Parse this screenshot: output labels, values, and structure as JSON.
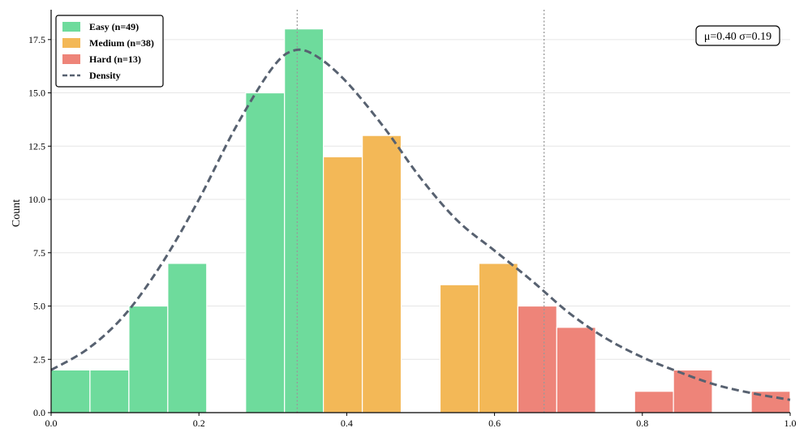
{
  "chart_data": {
    "type": "bar",
    "ylabel": "Count",
    "xlabel": "",
    "xlim": [
      0.0,
      1.0
    ],
    "ylim": [
      0,
      18.9
    ],
    "grid": "horizontal",
    "legend_position": "top-left",
    "x_ticks": [
      "0.0",
      "0.2",
      "0.4",
      "0.6",
      "0.8",
      "1.0"
    ],
    "y_ticks": [
      "0.0",
      "2.5",
      "5.0",
      "7.5",
      "10.0",
      "12.5",
      "15.0",
      "17.5"
    ],
    "bin_width": 0.0526,
    "series": [
      {
        "name": "Easy (n=49)",
        "color": "#6edb9c",
        "bins": [
          {
            "x0": 0.0,
            "count": 2
          },
          {
            "x0": 0.0526,
            "count": 2
          },
          {
            "x0": 0.1053,
            "count": 5
          },
          {
            "x0": 0.1579,
            "count": 7
          },
          {
            "x0": 0.2632,
            "count": 15
          },
          {
            "x0": 0.3158,
            "count": 18
          }
        ]
      },
      {
        "name": "Medium (n=38)",
        "color": "#f3b857",
        "bins": [
          {
            "x0": 0.3684,
            "count": 12
          },
          {
            "x0": 0.4211,
            "count": 13
          },
          {
            "x0": 0.5263,
            "count": 6
          },
          {
            "x0": 0.5789,
            "count": 7
          }
        ]
      },
      {
        "name": "Hard (n=13)",
        "color": "#ee8479",
        "bins": [
          {
            "x0": 0.6316,
            "count": 5
          },
          {
            "x0": 0.6842,
            "count": 4
          },
          {
            "x0": 0.7895,
            "count": 1
          },
          {
            "x0": 0.8421,
            "count": 2
          },
          {
            "x0": 0.9474,
            "count": 1
          }
        ]
      }
    ],
    "density": {
      "name": "Density",
      "color": "#576170",
      "x": [
        0.0,
        0.05,
        0.1,
        0.15,
        0.2,
        0.25,
        0.3,
        0.33,
        0.36,
        0.4,
        0.45,
        0.5,
        0.55,
        0.6,
        0.65,
        0.7,
        0.75,
        0.8,
        0.85,
        0.9,
        0.95,
        1.0
      ],
      "y": [
        2.0,
        3.0,
        4.6,
        7.0,
        10.0,
        13.4,
        16.2,
        17.0,
        16.7,
        15.5,
        13.4,
        11.0,
        9.0,
        7.6,
        6.2,
        4.7,
        3.5,
        2.6,
        1.9,
        1.3,
        0.9,
        0.6
      ]
    },
    "threshold_lines": [
      0.333,
      0.667
    ],
    "annotation": "μ=0.40  σ=0.19"
  }
}
